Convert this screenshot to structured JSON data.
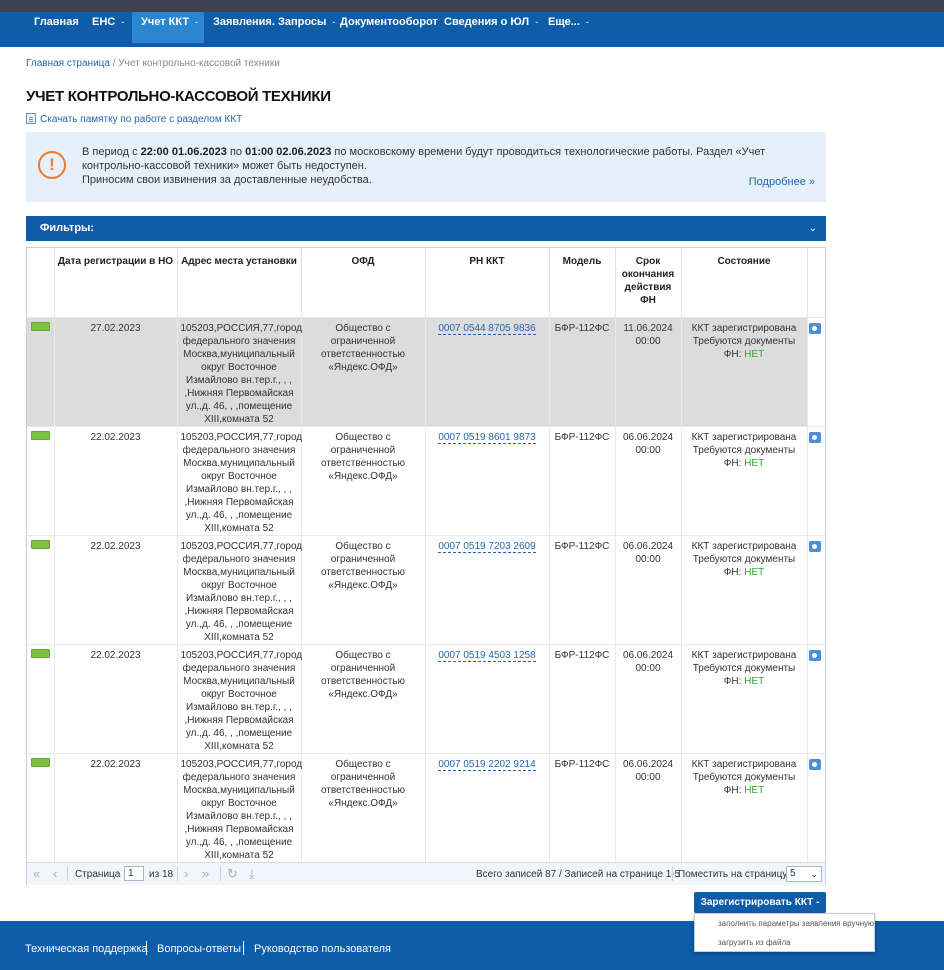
{
  "nav": {
    "items": [
      {
        "label": "Главная",
        "chevron": ""
      },
      {
        "label": "ЕНС",
        "chevron": "-"
      },
      {
        "label": "Учет ККТ",
        "chevron": "-"
      },
      {
        "label": "Заявления. Запросы",
        "chevron": "-"
      },
      {
        "label": "Документооборот",
        "chevron": ""
      },
      {
        "label": "Сведения о ЮЛ",
        "chevron": "-"
      },
      {
        "label": "Еще...",
        "chevron": "-"
      }
    ],
    "active_index": 2
  },
  "breadcrumb": {
    "home": "Главная страница",
    "separator": "/",
    "current": "Учет контрольно-кассовой техники"
  },
  "page_title": "УЧЕТ КОНТРОЛЬНО-КАССОВОЙ ТЕХНИКИ",
  "memo_link": "Скачать памятку по работе с разделом ККТ",
  "notice": {
    "icon": "!",
    "p1": "В период с ",
    "from": "22:00 01.06.2023",
    "p2": " по ",
    "to": "01:00 02.06.2023",
    "p3": " по московскому времени будут проводиться технологические работы. Раздел «Учет контрольно-кассовой техники» может быть недоступен.",
    "line2": "Приносим свои извинения за доставленные неудобства.",
    "more": "Подробнее »",
    "accent_color": "#f07a2a"
  },
  "filters": {
    "label": "Фильтры:",
    "chevron": "⌄"
  },
  "table": {
    "headers": {
      "reg_date": "Дата регистрации в НО",
      "address": "Адрес места установки",
      "ofd": "ОФД",
      "rn": "РН ККТ",
      "model": "Модель",
      "fn_expiry": "Срок окончания действия ФН",
      "state": "Состояние"
    },
    "rows": [
      {
        "reg_date": "27.02.2023",
        "address": "105203,РОССИЯ,77,город федерального значения Москва,муниципальный округ Восточное Измайлово вн.тер.г., , , ,Нижняя Первомайская ул.,д. 46, , ,помещение XIII,комната 52",
        "ofd": "Общество с ограниченной ответственностью «Яндекс.ОФД»",
        "rn": "0007 0544 8705 9836",
        "model": "БФР-112ФС",
        "fn_date": "11.06.2024",
        "fn_time": "00:00",
        "state1": "ККТ зарегистрирована",
        "state2": "Требуются документы",
        "fn_label": "ФН:",
        "fn_value": "НЕТ"
      },
      {
        "reg_date": "22.02.2023",
        "address": "105203,РОССИЯ,77,город федерального значения Москва,муниципальный округ Восточное Измайлово вн.тер.г., , , ,Нижняя Первомайская ул.,д. 46, , ,помещение XIII,комната 52",
        "ofd": "Общество с ограниченной ответственностью «Яндекс.ОФД»",
        "rn": "0007 0519 8601 9873",
        "model": "БФР-112ФС",
        "fn_date": "06.06.2024",
        "fn_time": "00:00",
        "state1": "ККТ зарегистрирована",
        "state2": "Требуются документы",
        "fn_label": "ФН:",
        "fn_value": "НЕТ"
      },
      {
        "reg_date": "22.02.2023",
        "address": "105203,РОССИЯ,77,город федерального значения Москва,муниципальный округ Восточное Измайлово вн.тер.г., , , ,Нижняя Первомайская ул.,д. 46, , ,помещение XIII,комната 52",
        "ofd": "Общество с ограниченной ответственностью «Яндекс.ОФД»",
        "rn": "0007 0519 7203 2609",
        "model": "БФР-112ФС",
        "fn_date": "06.06.2024",
        "fn_time": "00:00",
        "state1": "ККТ зарегистрирована",
        "state2": "Требуются документы",
        "fn_label": "ФН:",
        "fn_value": "НЕТ"
      },
      {
        "reg_date": "22.02.2023",
        "address": "105203,РОССИЯ,77,город федерального значения Москва,муниципальный округ Восточное Измайлово вн.тер.г., , , ,Нижняя Первомайская ул.,д. 46, , ,помещение XIII,комната 52",
        "ofd": "Общество с ограниченной ответственностью «Яндекс.ОФД»",
        "rn": "0007 0519 4503 1258",
        "model": "БФР-112ФС",
        "fn_date": "06.06.2024",
        "fn_time": "00:00",
        "state1": "ККТ зарегистрирована",
        "state2": "Требуются документы",
        "fn_label": "ФН:",
        "fn_value": "НЕТ"
      },
      {
        "reg_date": "22.02.2023",
        "address": "105203,РОССИЯ,77,город федерального значения Москва,муниципальный округ Восточное Измайлово вн.тер.г., , , ,Нижняя Первомайская ул.,д. 46, , ,помещение XIII,комната 52",
        "ofd": "Общество с ограниченной ответственностью «Яндекс.ОФД»",
        "rn": "0007 0519 2202 9214",
        "model": "БФР-112ФС",
        "fn_date": "06.06.2024",
        "fn_time": "00:00",
        "state1": "ККТ зарегистрирована",
        "state2": "Требуются документы",
        "fn_label": "ФН:",
        "fn_value": "НЕТ"
      }
    ],
    "status_color": "#7cc044",
    "selected_row": 0
  },
  "pager": {
    "first": "«",
    "prev": "‹",
    "page_label": "Страница",
    "page_value": "1",
    "of_label": "из 18",
    "next": "›",
    "last": "»",
    "refresh": "↻",
    "export": "⤓",
    "total": "Всего записей 87 / Записей на странице 1-5",
    "per_page_label": "Поместить на страницу:",
    "per_page_value": "5",
    "dropdown": "⌄"
  },
  "register_button": {
    "label": "Зарегистрировать ККТ",
    "chevron": "-"
  },
  "register_menu": {
    "items": [
      "заполнить параметры заявления вручную",
      "загрузить из файла"
    ]
  },
  "footer": {
    "links": [
      "Техническая поддержка",
      "Вопросы-ответы",
      "Руководство пользователя"
    ]
  }
}
